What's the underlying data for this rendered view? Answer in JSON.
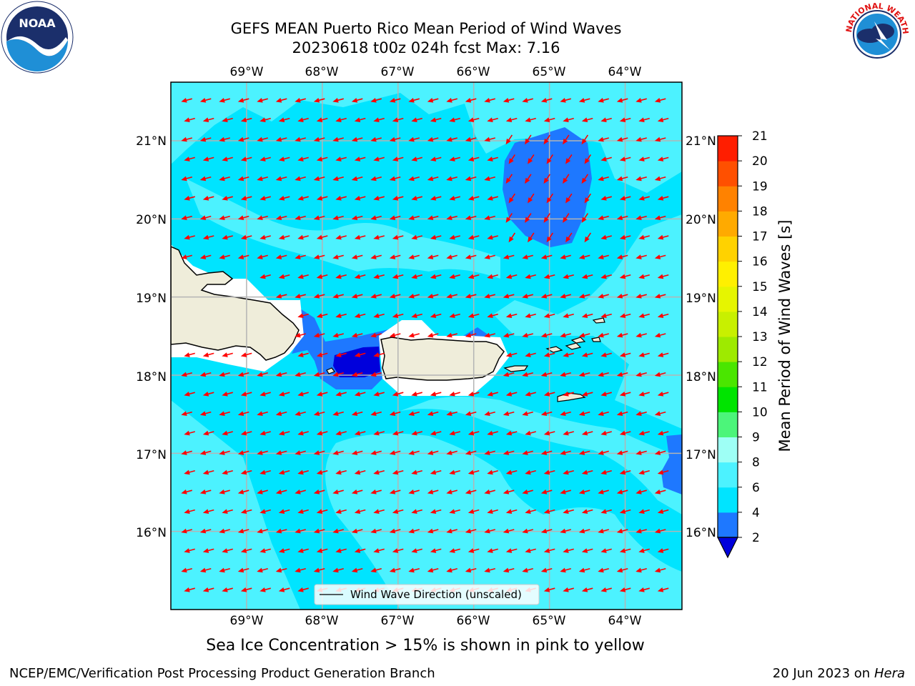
{
  "title_line1": "GEFS MEAN Puerto Rico Mean Period of Wind Waves",
  "title_line2": "20230618 t00z 024h fcst   Max: 7.16",
  "note": "Sea Ice Concentration > 15% is shown in pink to yellow",
  "credit": "NCEP/EMC/Verification Post Processing Product Generation Branch",
  "date": "20 Jun 2023 on",
  "machine": "Hera",
  "legend_label": "Wind Wave Direction (unscaled)",
  "colorbar_title": "Mean Period of Wind Waves [s]",
  "logo_left_text": "NOAA",
  "logo_right_text": "NATIONAL WEATHER SERVICE",
  "lon_labels": [
    "69°W",
    "68°W",
    "67°W",
    "66°W",
    "65°W",
    "64°W"
  ],
  "lat_labels": [
    "21°N",
    "20°N",
    "19°N",
    "18°N",
    "17°N",
    "16°N"
  ],
  "colorbar": {
    "levels": [
      2,
      4,
      6,
      8,
      9,
      10,
      11,
      12,
      13,
      14,
      15,
      16,
      17,
      18,
      19,
      20,
      21
    ],
    "colors": [
      "#1e78ff",
      "#00e4ff",
      "#4cf2ff",
      "#9efff5",
      "#4cf57a",
      "#00e400",
      "#4ae600",
      "#9eea00",
      "#c8f000",
      "#e6f500",
      "#fff000",
      "#ffd200",
      "#ffaa00",
      "#ff8200",
      "#ff5000",
      "#ff1e00"
    ],
    "under_color": "#0000dc"
  },
  "colors": {
    "land": "#efedda",
    "ocean_low": "#00e4ff",
    "ocean_mid": "#4cf2ff",
    "blue": "#1e78ff",
    "deep_blue": "#0000dc",
    "arrow": "#ff0000",
    "grid": "#b4b4b4"
  },
  "chart_data": {
    "type": "heatmap",
    "title": "GEFS MEAN Puerto Rico Mean Period of Wind Waves",
    "subtitle": "20230618 t00z 024h fcst   Max: 7.16",
    "xlim": [
      -70.0,
      -63.25
    ],
    "ylim": [
      15.0,
      21.75
    ],
    "x_ticks": [
      -69,
      -68,
      -67,
      -66,
      -65,
      -64
    ],
    "y_ticks": [
      16,
      17,
      18,
      19,
      20,
      21
    ],
    "colorbar_label": "Mean Period of Wind Waves [s]",
    "max_value": 7.16,
    "grid": true,
    "legend_placement": "bottom-center",
    "wave_direction_deg_toward": 255
  }
}
